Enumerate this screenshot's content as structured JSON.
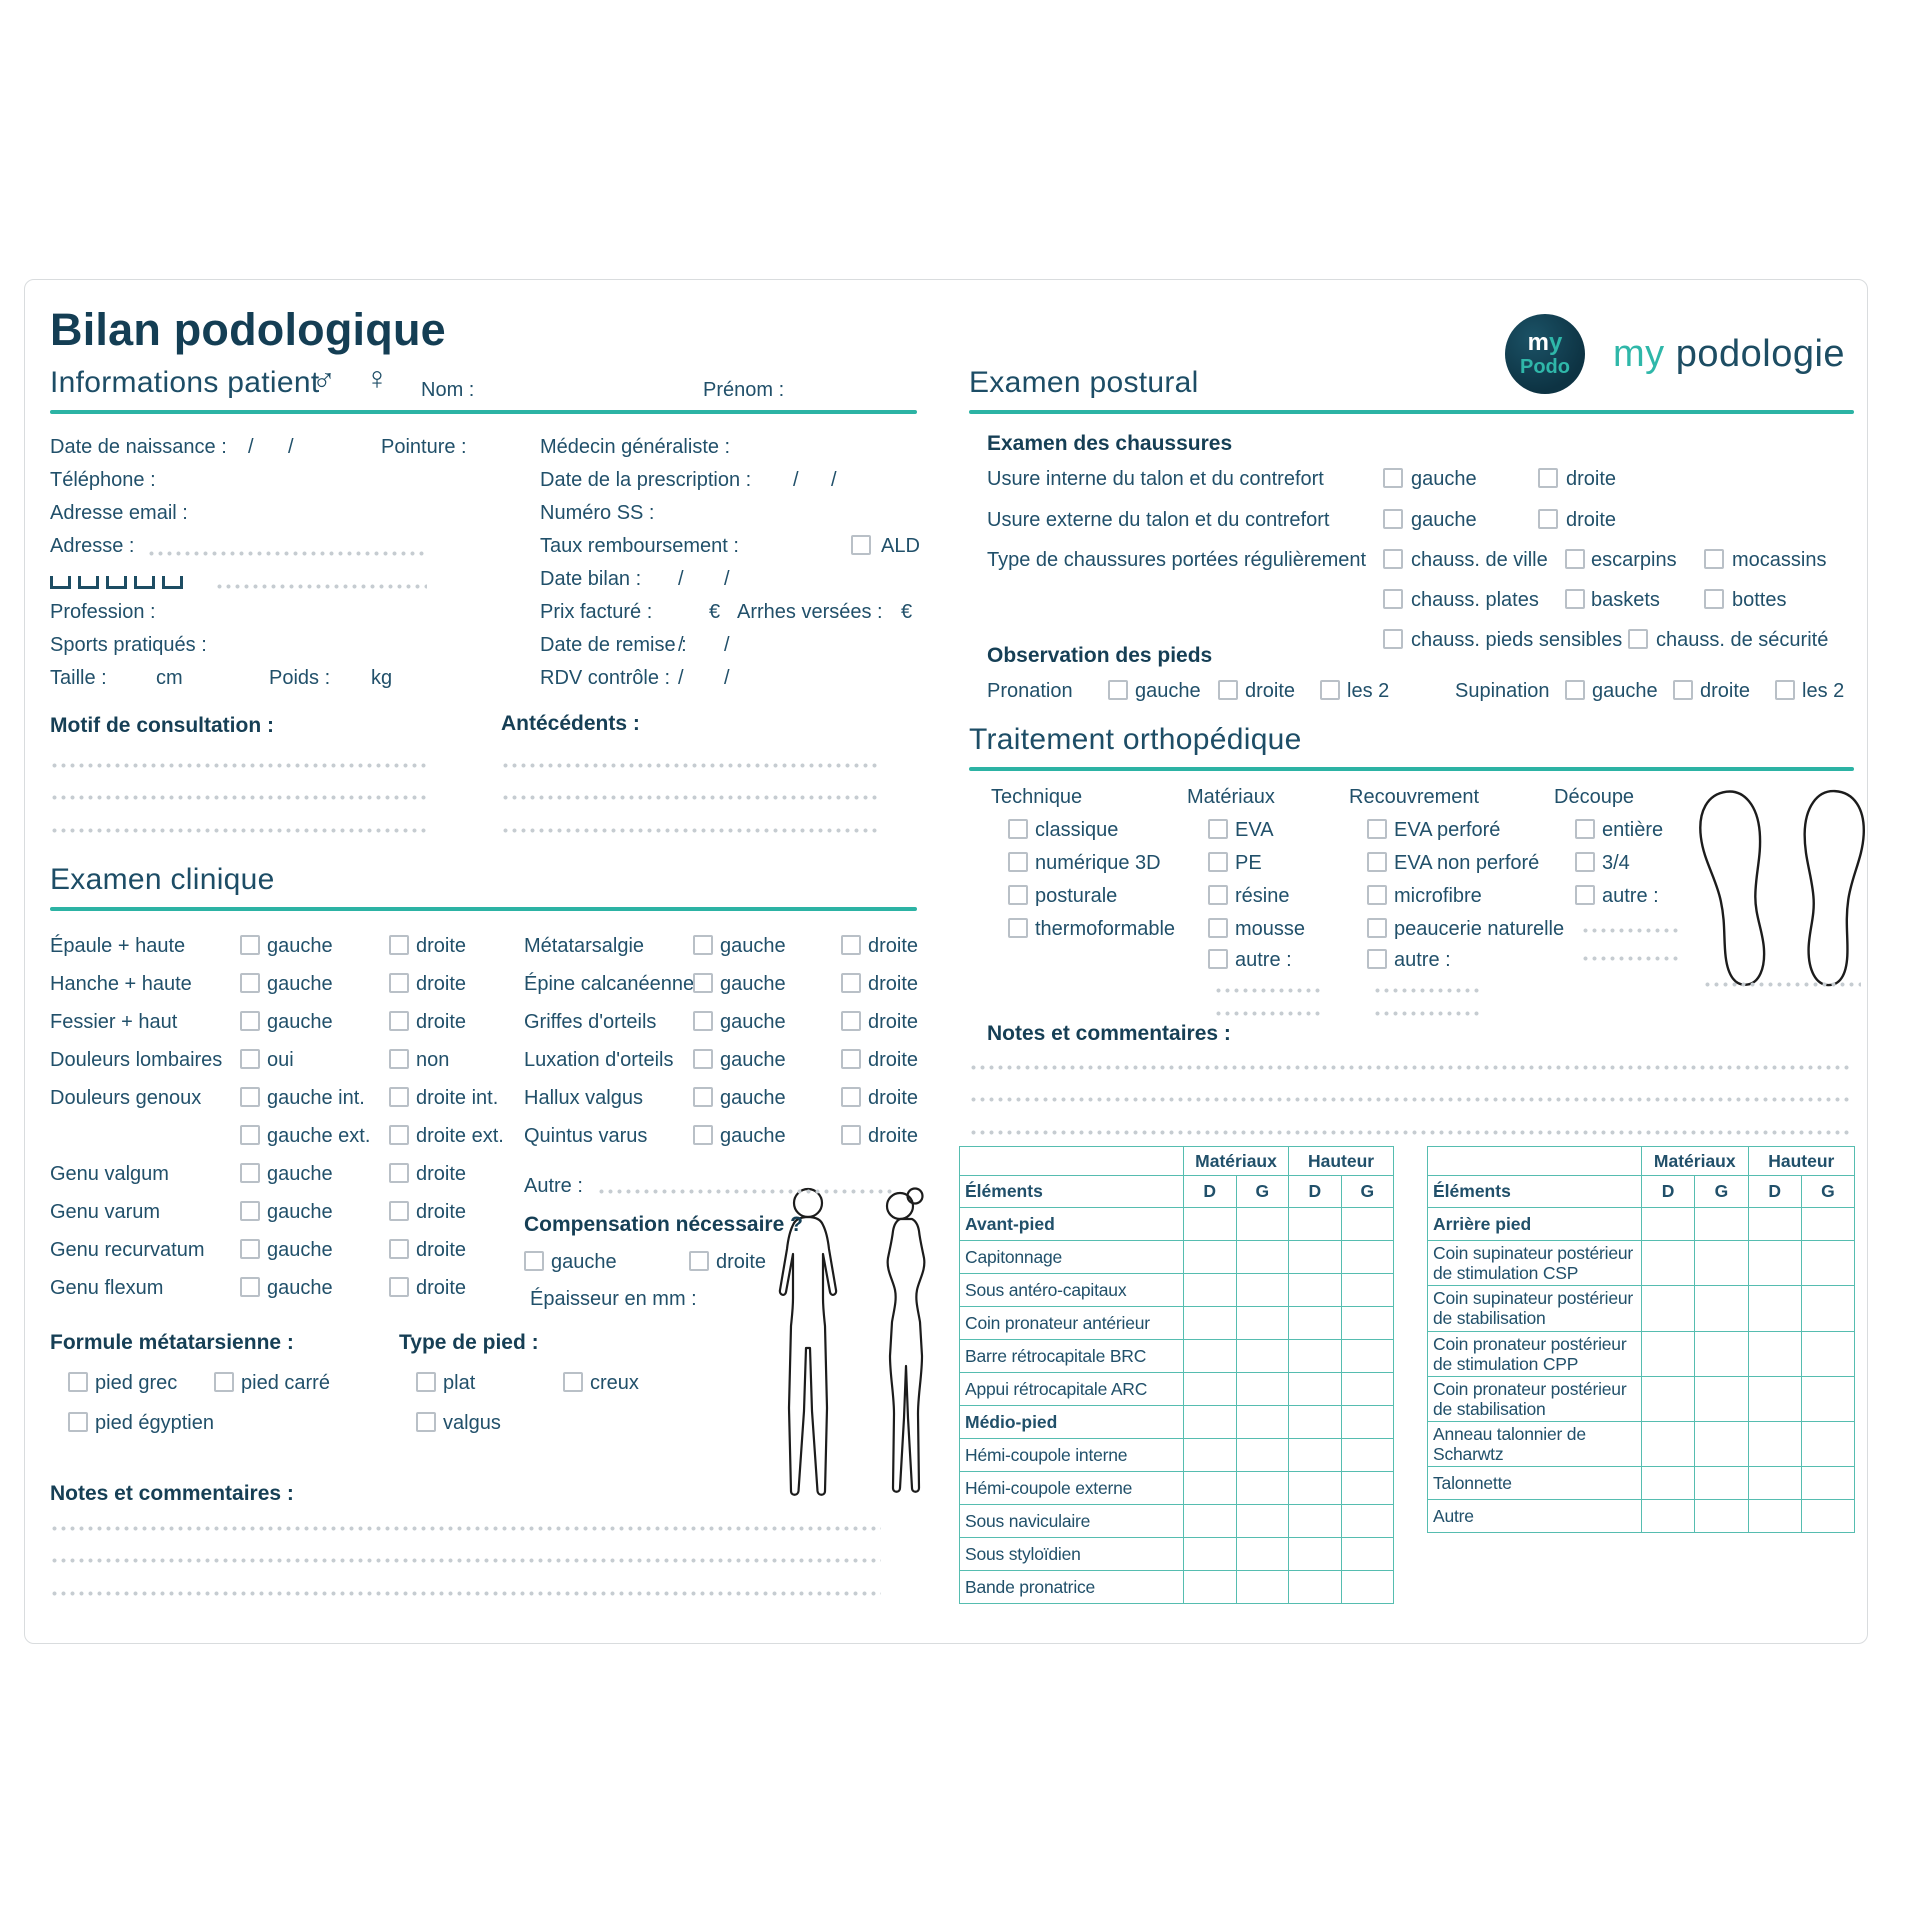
{
  "colors": {
    "accent": "#2cb3a4",
    "ink": "#21506a",
    "ink_strong": "#143e54",
    "table_border": "#56bdb0",
    "checkbox_border": "#b9c0c7",
    "dots": "#c6ccd1"
  },
  "header": {
    "title": "Bilan podologique",
    "logo_m": "m",
    "logo_y": "y",
    "logo_podo": "Podo",
    "brand_my": "my",
    "brand_rest": "podologie"
  },
  "patient": {
    "section_title": "Informations patient",
    "male_symbol": "♂",
    "female_symbol": "♀",
    "nom_label": "Nom :",
    "prenom_label": "Prénom :",
    "date_naissance": "Date de naissance :",
    "pointure": "Pointure :",
    "telephone": "Téléphone :",
    "email": "Adresse email :",
    "adresse": "Adresse :",
    "profession": "Profession :",
    "sports": "Sports pratiqués :",
    "taille": "Taille :",
    "cm": "cm",
    "poids": "Poids :",
    "kg": "kg",
    "medecin": "Médecin généraliste :",
    "prescription": "Date de la prescription :",
    "numero_ss": "Numéro SS :",
    "taux": "Taux remboursement :",
    "ald": "ALD",
    "date_bilan": "Date bilan :",
    "prix": "Prix facturé :",
    "euro": "€",
    "arrhes": "Arrhes versées :",
    "remise": "Date de remise :",
    "rdv": "RDV contrôle :",
    "slash": "/"
  },
  "motif_label": "Motif de consultation :",
  "antecedents_label": "Antécédents :",
  "examen_clinique": {
    "section_title": "Examen clinique",
    "rows_col1": [
      {
        "label": "Épaule + haute",
        "o1": "gauche",
        "o2": "droite"
      },
      {
        "label": "Hanche + haute",
        "o1": "gauche",
        "o2": "droite"
      },
      {
        "label": "Fessier + haut",
        "o1": "gauche",
        "o2": "droite"
      },
      {
        "label": "Douleurs lombaires",
        "o1": "oui",
        "o2": "non"
      },
      {
        "label": "Douleurs genoux",
        "o1": "gauche int.",
        "o2": "droite int."
      },
      {
        "label": "",
        "o1": "gauche ext.",
        "o2": "droite ext."
      },
      {
        "label": "Genu valgum",
        "o1": "gauche",
        "o2": "droite"
      },
      {
        "label": "Genu varum",
        "o1": "gauche",
        "o2": "droite"
      },
      {
        "label": "Genu recurvatum",
        "o1": "gauche",
        "o2": "droite"
      },
      {
        "label": "Genu flexum",
        "o1": "gauche",
        "o2": "droite"
      }
    ],
    "rows_col2": [
      {
        "label": "Métatarsalgie",
        "o1": "gauche",
        "o2": "droite"
      },
      {
        "label": "Épine calcanéenne",
        "o1": "gauche",
        "o2": "droite"
      },
      {
        "label": "Griffes d'orteils",
        "o1": "gauche",
        "o2": "droite"
      },
      {
        "label": "Luxation d'orteils",
        "o1": "gauche",
        "o2": "droite"
      },
      {
        "label": "Hallux valgus",
        "o1": "gauche",
        "o2": "droite"
      },
      {
        "label": "Quintus varus",
        "o1": "gauche",
        "o2": "droite"
      }
    ],
    "autre": "Autre :",
    "compensation": "Compensation nécessaire ?",
    "comp_g": "gauche",
    "comp_d": "droite",
    "epaisseur": "Épaisseur en mm :",
    "formule": "Formule métatarsienne :",
    "formule_options": [
      "pied grec",
      "pied carré",
      "pied égyptien"
    ],
    "type_pied": "Type de pied :",
    "type_options": [
      "plat",
      "creux",
      "valgus"
    ],
    "notes": "Notes et commentaires :"
  },
  "examen_postural": {
    "section_title": "Examen postural",
    "chaussures_title": "Examen des chaussures",
    "usure_interne": "Usure interne du talon et du contrefort",
    "usure_externe": "Usure externe du talon et du contrefort",
    "type_chaussures": "Type de chaussures portées régulièrement",
    "gauche": "gauche",
    "droite": "droite",
    "shoe_rows": [
      [
        "chauss. de ville",
        "escarpins",
        "mocassins"
      ],
      [
        "chauss. plates",
        "baskets",
        "bottes"
      ],
      [
        "chauss. pieds sensibles",
        "chauss. de sécurité"
      ]
    ],
    "observation_title": "Observation des pieds",
    "pronation": "Pronation",
    "supination": "Supination",
    "foot_options": [
      "gauche",
      "droite",
      "les 2"
    ]
  },
  "traitement": {
    "section_title": "Traitement orthopédique",
    "columns": [
      {
        "header": "Technique",
        "items": [
          "classique",
          "numérique 3D",
          "posturale",
          "thermoformable"
        ],
        "dots": 0
      },
      {
        "header": "Matériaux",
        "items": [
          "EVA",
          "PE",
          "résine",
          "mousse",
          "autre :"
        ],
        "dots": 2
      },
      {
        "header": "Recouvrement",
        "items": [
          "EVA perforé",
          "EVA non perforé",
          "microfibre",
          "peaucerie naturelle",
          "autre :"
        ],
        "dots": 2
      },
      {
        "header": "Découpe",
        "items": [
          "entière",
          "3/4",
          "autre :"
        ],
        "dots": 2
      }
    ],
    "notes": "Notes et commentaires :"
  },
  "tables": {
    "materiaux_header": "Matériaux",
    "hauteur_header": "Hauteur",
    "elements_header": "Éléments",
    "d": "D",
    "g": "G",
    "left_sections": [
      {
        "title": "Avant-pied",
        "rows": [
          "Capitonnage",
          "Sous antéro-capitaux",
          "Coin pronateur antérieur",
          "Barre rétrocapitale BRC",
          "Appui rétrocapitale ARC"
        ]
      },
      {
        "title": "Médio-pied",
        "rows": [
          "Hémi-coupole interne",
          "Hémi-coupole externe",
          "Sous naviculaire",
          "Sous styloïdien",
          "Bande pronatrice"
        ]
      }
    ],
    "right_sections": [
      {
        "title": "Arrière pied",
        "rows": [
          "Coin supinateur postérieur\nde stimulation CSP",
          "Coin supinateur postérieur\nde stabilisation",
          "Coin pronateur postérieur\nde stimulation CPP",
          "Coin pronateur postérieur\nde stabilisation",
          "Anneau talonnier de\nScharwtz",
          "Talonnette",
          "Autre"
        ]
      }
    ]
  }
}
